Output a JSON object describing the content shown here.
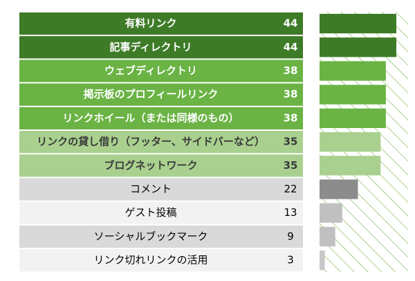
{
  "chart_data": {
    "type": "bar",
    "categories": [
      "有料リンク",
      "記事ディレクトリ",
      "ウェブディレクトリ",
      "掲示板のプロフィールリンク",
      "リンクホイール（または同様のもの）",
      "リンクの貸し借り（フッター、サイドバーなど）",
      "ブログネットワーク",
      "コメント",
      "ゲスト投稿",
      "ソーシャルブックマーク",
      "リンク切れリンクの活用"
    ],
    "values": [
      44,
      44,
      38,
      38,
      38,
      35,
      35,
      22,
      13,
      9,
      3
    ],
    "row_colors": [
      "#3e7b27",
      "#3e7b27",
      "#6ab344",
      "#6ab344",
      "#6ab344",
      "#a9d08e",
      "#a9d08e",
      "#d9d9d9",
      "#f2f2f2",
      "#d9d9d9",
      "#f2f2f2"
    ],
    "bar_colors": [
      "#3e7b27",
      "#3e7b27",
      "#6ab344",
      "#6ab344",
      "#6ab344",
      "#a9d08e",
      "#a9d08e",
      "#8c8c8c",
      "#c0c0c0",
      "#c0c0c0",
      "#c8c8c8"
    ],
    "text_colors": [
      "#ffffff",
      "#ffffff",
      "#ffffff",
      "#ffffff",
      "#ffffff",
      "#3a3a3a",
      "#3a3a3a",
      "#000000",
      "#000000",
      "#000000",
      "#000000"
    ],
    "bold": [
      true,
      true,
      true,
      true,
      true,
      true,
      true,
      false,
      false,
      false,
      false
    ],
    "hatch_color": "#6ab344"
  }
}
